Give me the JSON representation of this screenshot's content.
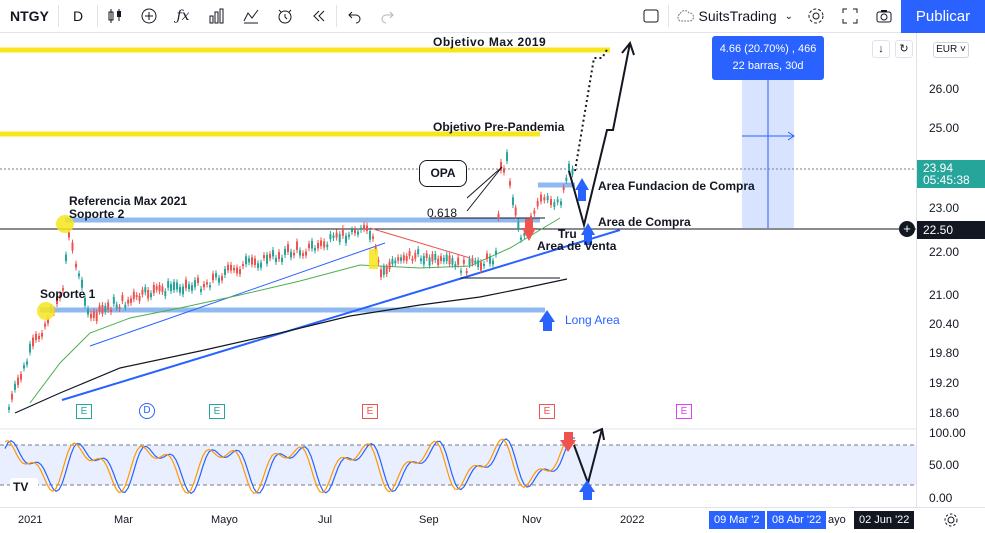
{
  "toolbar": {
    "symbol": "NTGY",
    "interval": "D",
    "account": "SuitsTrading",
    "publish_label": "Publicar"
  },
  "price_axis": {
    "currency": "EUR",
    "labels": [
      "26.00",
      "25.00",
      "23.00",
      "22.00",
      "21.00",
      "20.40",
      "19.80",
      "19.20",
      "18.60"
    ],
    "last_price": "23.94",
    "countdown": "05:45:38",
    "crosshair_price": "22.50"
  },
  "oscillator_axis": {
    "labels": [
      "100.00",
      "50.00",
      "0.00"
    ]
  },
  "time_axis": {
    "labels": [
      "2021",
      "Mar",
      "Mayo",
      "Jul",
      "Sep",
      "Nov",
      "2022",
      "ayo"
    ],
    "range_start": "09 Mar '2",
    "range_end": "08 Abr '22",
    "cursor_date": "02 Jun '22"
  },
  "measure_tooltip": {
    "line1": "4.66 (20.70%) , 466",
    "line2": "22 barras, 30d"
  },
  "annotations": {
    "objetivo_max": "Objetivo Max 2019",
    "objetivo_pre": "Objetivo Pre-Pandemia",
    "referencia": "Referencia Max 2021",
    "soporte2": "Soporte 2",
    "soporte1": "Soporte 1",
    "fib": "0.618",
    "opa": "OPA",
    "area_fundacion": "Area Fundacion de Compra",
    "area_compra": "Area de Compra",
    "area_venta": "Area de Venta",
    "truncated": "Tru",
    "long_area": "Long Area"
  },
  "event_markers": [
    "E",
    "D",
    "E",
    "E",
    "E",
    "E"
  ],
  "colors": {
    "accent": "#2962ff",
    "yellow_line": "#f7e51d",
    "light_blue": "#90b9f0",
    "candle_up": "#26a69a",
    "candle_down": "#ef5350",
    "last_price_tag": "#26a69a"
  }
}
